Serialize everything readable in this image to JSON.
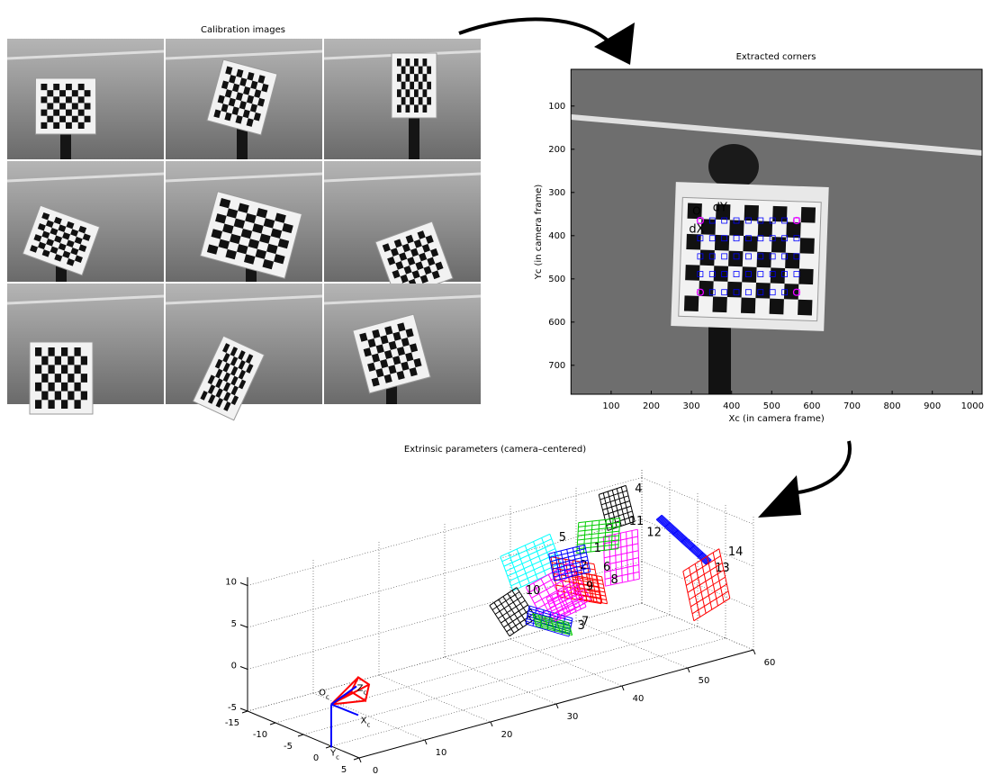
{
  "chart_data": [
    {
      "type": "image-grid",
      "title": "Calibration images"
    },
    {
      "type": "image",
      "title": "Extracted corners",
      "xlabel": "Xc (in camera frame)",
      "ylabel": "Yc (in camera frame)",
      "xlim": [
        0,
        1024
      ],
      "ylim": [
        15,
        767
      ],
      "xticks": [
        100,
        200,
        300,
        400,
        500,
        600,
        700,
        800,
        900,
        1000
      ],
      "yticks": [
        100,
        200,
        300,
        400,
        500,
        600,
        700
      ],
      "corner_x": [
        322,
        352,
        382,
        412,
        442,
        472,
        502,
        532,
        562
      ],
      "corner_y": [
        365,
        406,
        448,
        489,
        531
      ],
      "corner_color": "#0000ff",
      "annotations": [
        {
          "text": "O",
          "color": "#ff00ff"
        },
        {
          "text": "dY",
          "color": "#00cc00"
        },
        {
          "text": "dX",
          "color": "#00cc00"
        }
      ]
    },
    {
      "type": "3d",
      "title": "Extrinsic parameters (camera–centered)",
      "xlim": [
        -15,
        5
      ],
      "xticks": [
        -15,
        -10,
        -5,
        0,
        5
      ],
      "ylim": [
        0,
        60
      ],
      "yticks": [
        0,
        10,
        20,
        30,
        40,
        50,
        60
      ],
      "zlim": [
        -5,
        11
      ],
      "zticks": [
        -5,
        0,
        5,
        10
      ],
      "grid": true,
      "camera_labels": [
        {
          "base": "O",
          "sub": "c"
        },
        {
          "base": "Z",
          "sub": "c"
        },
        {
          "base": "X",
          "sub": "c"
        },
        {
          "base": "Y",
          "sub": "c"
        }
      ],
      "planes": [
        {
          "label": "4",
          "color": "#000000",
          "center": [
            -5,
            47.7,
            11.8
          ]
        },
        {
          "label": "12",
          "color": "#ff00ff",
          "center": [
            -5,
            48.4,
            5.7
          ]
        },
        {
          "label": "13",
          "color": "#0000ff",
          "center": [
            -5,
            57.9,
            5.8
          ]
        },
        {
          "label": "14",
          "color": "#ff0000",
          "center": [
            0,
            57.1,
            2
          ]
        },
        {
          "label": "5",
          "color": "#00ffff",
          "center": [
            -5,
            34.7,
            8.1
          ]
        },
        {
          "label": "6",
          "color": "#ff0000",
          "center": [
            -5,
            41.5,
            4.5
          ]
        },
        {
          "label": "2",
          "color": "#ff00ff",
          "center": [
            -5,
            38.8,
            3.5
          ]
        },
        {
          "label": "10",
          "color": "#000000",
          "center": [
            -5,
            31.9,
            2.8
          ]
        },
        {
          "label": "7",
          "color": "#0000ff",
          "center": [
            -5,
            37.4,
            0.5
          ]
        },
        {
          "label": "3",
          "color": "#00cc00",
          "center": [
            -5,
            37.9,
            0
          ]
        },
        {
          "label": "11",
          "color": "#00cc00",
          "center": [
            -5,
            44.9,
            9.1
          ]
        },
        {
          "label": "8",
          "color": "#ff0000",
          "center": [
            -5,
            43.5,
            3.2
          ]
        },
        {
          "label": "1",
          "color": "#0000ff",
          "center": [
            -5,
            40.5,
            6.8
          ]
        },
        {
          "label": "9",
          "color": "#ff00ff",
          "center": [
            -5,
            40,
            2.2
          ]
        }
      ]
    }
  ]
}
